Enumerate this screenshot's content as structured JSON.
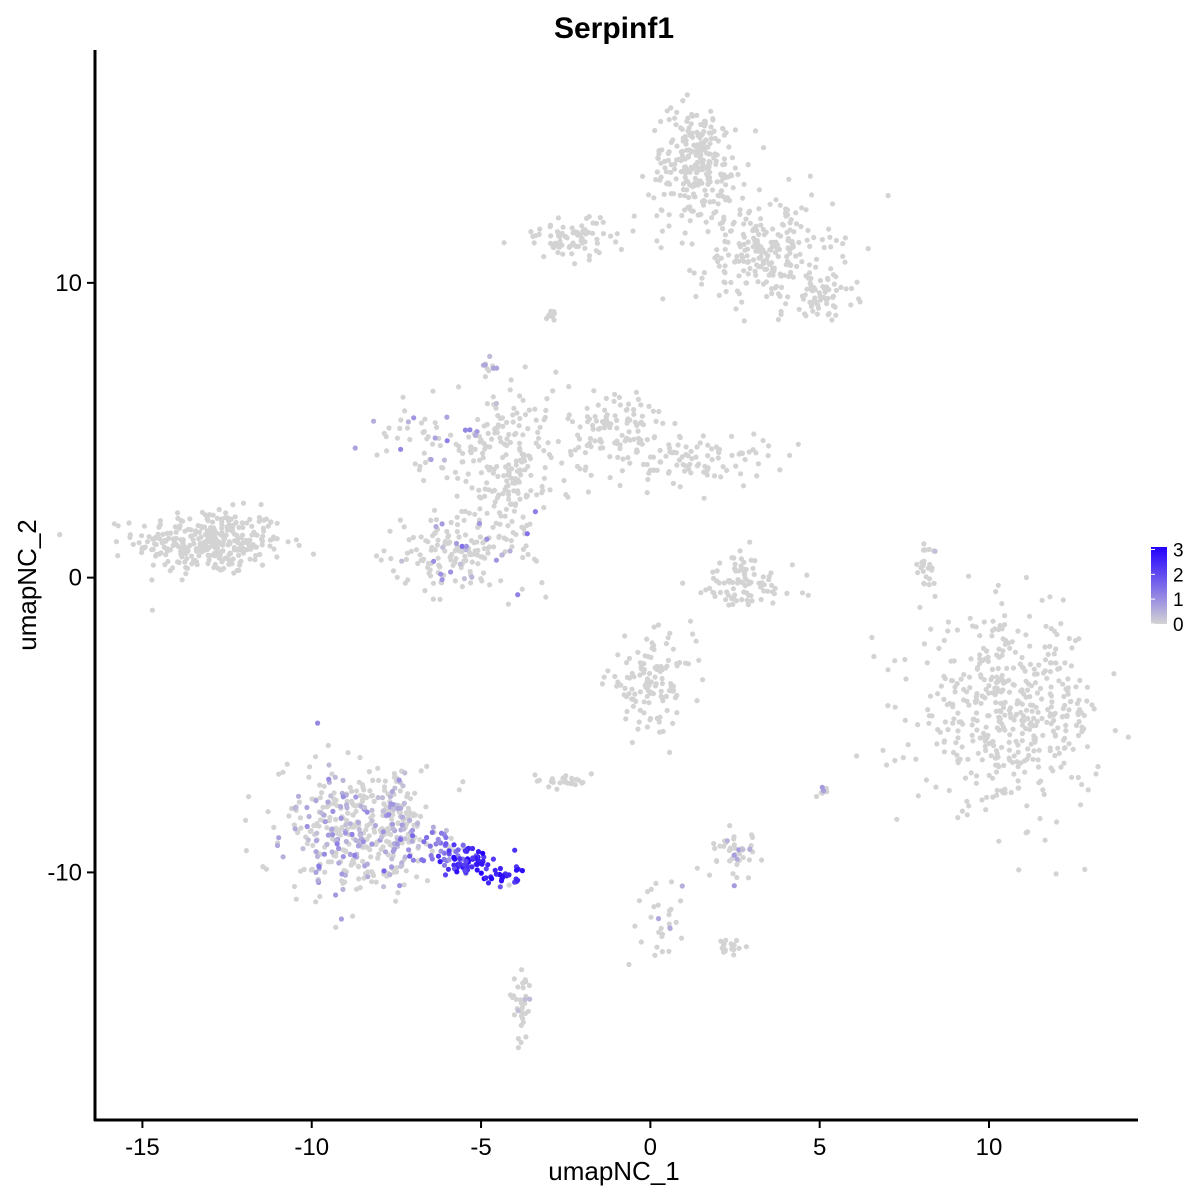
{
  "chart_data": {
    "type": "scatter",
    "title": "Serpinf1",
    "xlabel": "umapNC_1",
    "ylabel": "umapNC_2",
    "xlim": [
      -16.4,
      14.4
    ],
    "ylim": [
      -18.4,
      17.9
    ],
    "x_ticks": [
      -15,
      -10,
      -5,
      0,
      5,
      10
    ],
    "y_ticks": [
      -10,
      0,
      10
    ],
    "tick_labels_x": [
      "-15",
      "-10",
      "-5",
      "0",
      "5",
      "10"
    ],
    "tick_labels_y": [
      "-10",
      "0",
      "10"
    ],
    "color_scale": {
      "low_color": "#d3d3d3",
      "high_color": "#2200ff",
      "min": 0,
      "max": 3.1,
      "legend_ticks": [
        0,
        1,
        2,
        3
      ],
      "legend_labels": [
        "0",
        "1",
        "2",
        "3"
      ]
    },
    "grid": false,
    "legend_placement": "right",
    "clusters": [
      {
        "cx": -13.0,
        "cy": 1.2,
        "sx": 1.1,
        "sy": 0.55,
        "n": 330,
        "expr": 0,
        "frac": 0.01
      },
      {
        "cx": -8.8,
        "cy": -8.6,
        "sx": 1.05,
        "sy": 1.05,
        "n": 360,
        "expr": 0.55,
        "frac": 0.32
      },
      {
        "cx": -7.5,
        "cy": -8.4,
        "sx": 0.6,
        "sy": 1.0,
        "n": 100,
        "expr": 0.55,
        "frac": 0.3
      },
      {
        "cx": -6.2,
        "cy": -9.2,
        "sx": 0.5,
        "sy": 0.28,
        "n": 40,
        "expr": 1.3,
        "frac": 0.8
      },
      {
        "cx": -5.4,
        "cy": -9.6,
        "sx": 0.45,
        "sy": 0.25,
        "n": 60,
        "expr": 2.6,
        "frac": 0.95
      },
      {
        "cx": -4.3,
        "cy": -10.1,
        "sx": 0.35,
        "sy": 0.18,
        "n": 25,
        "expr": 2.6,
        "frac": 0.9
      },
      {
        "cx": -3.8,
        "cy": -14.5,
        "sx": 0.12,
        "sy": 0.7,
        "n": 35,
        "expr": 0.4,
        "frac": 0.1
      },
      {
        "cx": -5.6,
        "cy": 0.9,
        "sx": 1.0,
        "sy": 0.7,
        "n": 160,
        "expr": 0.6,
        "frac": 0.12
      },
      {
        "cx": -4.2,
        "cy": 3.8,
        "sx": 0.8,
        "sy": 1.4,
        "n": 210,
        "expr": 0.6,
        "frac": 0.04
      },
      {
        "cx": -6.5,
        "cy": 4.6,
        "sx": 0.9,
        "sy": 0.6,
        "n": 60,
        "expr": 0.7,
        "frac": 0.12
      },
      {
        "cx": -1.0,
        "cy": 5.0,
        "sx": 0.7,
        "sy": 0.8,
        "n": 110,
        "expr": 0,
        "frac": 0.01
      },
      {
        "cx": 1.5,
        "cy": 4.0,
        "sx": 1.0,
        "sy": 0.45,
        "n": 90,
        "expr": 0,
        "frac": 0.01
      },
      {
        "cx": -4.7,
        "cy": 7.2,
        "sx": 0.12,
        "sy": 0.2,
        "n": 10,
        "expr": 0.7,
        "frac": 0.4
      },
      {
        "cx": 1.4,
        "cy": 14.0,
        "sx": 0.7,
        "sy": 1.0,
        "n": 260,
        "expr": 0,
        "frac": 0.0
      },
      {
        "cx": 3.4,
        "cy": 11.0,
        "sx": 1.0,
        "sy": 0.9,
        "n": 230,
        "expr": 0,
        "frac": 0.0
      },
      {
        "cx": -2.3,
        "cy": 11.5,
        "sx": 0.8,
        "sy": 0.35,
        "n": 80,
        "expr": 0,
        "frac": 0.0
      },
      {
        "cx": 5.1,
        "cy": 9.6,
        "sx": 0.5,
        "sy": 0.35,
        "n": 60,
        "expr": 0,
        "frac": 0.0
      },
      {
        "cx": 2.7,
        "cy": -0.2,
        "sx": 0.8,
        "sy": 0.55,
        "n": 90,
        "expr": 0,
        "frac": 0.0
      },
      {
        "cx": 0.0,
        "cy": -3.6,
        "sx": 0.65,
        "sy": 0.75,
        "n": 120,
        "expr": 0,
        "frac": 0.0
      },
      {
        "cx": 10.6,
        "cy": -4.6,
        "sx": 1.35,
        "sy": 1.55,
        "n": 470,
        "expr": 0,
        "frac": 0.0
      },
      {
        "cx": 2.6,
        "cy": -9.3,
        "sx": 0.5,
        "sy": 0.35,
        "n": 45,
        "expr": 0.5,
        "frac": 0.15
      },
      {
        "cx": -2.6,
        "cy": -6.9,
        "sx": 0.35,
        "sy": 0.15,
        "n": 25,
        "expr": 0,
        "frac": 0.0
      },
      {
        "cx": 0.2,
        "cy": -11.4,
        "sx": 0.35,
        "sy": 0.7,
        "n": 30,
        "expr": 0.5,
        "frac": 0.07
      },
      {
        "cx": 2.3,
        "cy": -12.5,
        "sx": 0.25,
        "sy": 0.15,
        "n": 18,
        "expr": 0,
        "frac": 0.0
      },
      {
        "cx": 5.1,
        "cy": -7.2,
        "sx": 0.06,
        "sy": 0.15,
        "n": 10,
        "expr": 0.5,
        "frac": 0.3
      },
      {
        "cx": 8.2,
        "cy": 0.3,
        "sx": 0.15,
        "sy": 0.45,
        "n": 25,
        "expr": 0.5,
        "frac": 0.1
      },
      {
        "cx": -2.9,
        "cy": 8.9,
        "sx": 0.08,
        "sy": 0.15,
        "n": 8,
        "expr": 0,
        "frac": 0.0
      }
    ]
  }
}
